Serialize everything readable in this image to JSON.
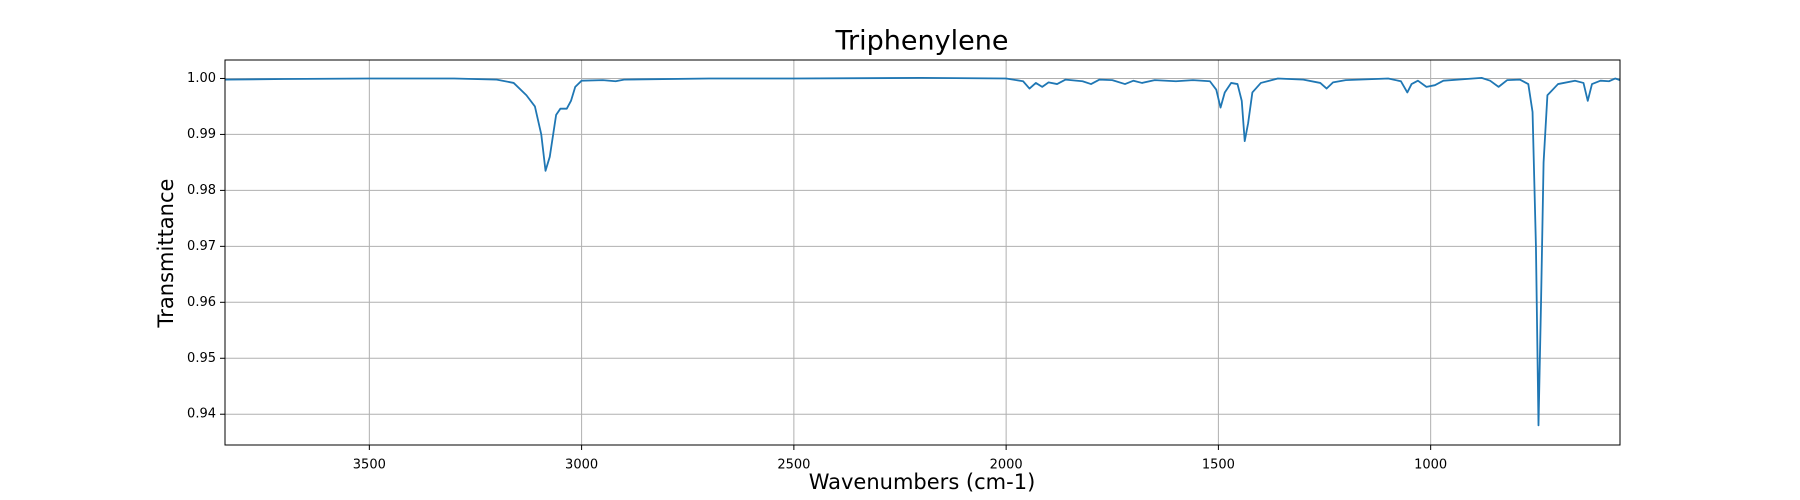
{
  "chart_data": {
    "type": "line",
    "title": "Triphenylene",
    "x_label": "Wavenumbers (cm-1)",
    "y_label": "Transmittance",
    "grid": true,
    "xlim": [
      3840,
      554
    ],
    "ylim": [
      0.9345,
      1.0033
    ],
    "xticks": [
      3500,
      3000,
      2500,
      2000,
      1500,
      1000
    ],
    "yticks": [
      0.94,
      0.95,
      0.96,
      0.97,
      0.98,
      0.99,
      {
        "value": 1,
        "label": "1.00"
      }
    ],
    "x": [
      3840,
      3700,
      3500,
      3300,
      3200,
      3160,
      3130,
      3110,
      3095,
      3085,
      3075,
      3060,
      3050,
      3035,
      3025,
      3015,
      3000,
      2950,
      2920,
      2900,
      2700,
      2500,
      2200,
      2000,
      1960,
      1945,
      1930,
      1915,
      1900,
      1880,
      1860,
      1820,
      1800,
      1780,
      1750,
      1720,
      1700,
      1680,
      1650,
      1600,
      1560,
      1520,
      1505,
      1495,
      1485,
      1470,
      1455,
      1445,
      1438,
      1430,
      1420,
      1400,
      1360,
      1300,
      1260,
      1245,
      1230,
      1200,
      1100,
      1070,
      1055,
      1045,
      1030,
      1010,
      990,
      970,
      900,
      880,
      860,
      840,
      820,
      790,
      770,
      760,
      752,
      746,
      740,
      734,
      725,
      700,
      660,
      640,
      630,
      620,
      600,
      580,
      565,
      554
    ],
    "series": [
      {
        "color": "#1f77b4",
        "values": [
          0.9998,
          0.9999,
          1.0,
          1.0,
          0.9998,
          0.9992,
          0.997,
          0.995,
          0.99,
          0.9835,
          0.986,
          0.9935,
          0.9946,
          0.9946,
          0.996,
          0.9985,
          0.9996,
          0.9997,
          0.9995,
          0.9998,
          1.0,
          1.0,
          1.0001,
          1.0,
          0.9995,
          0.9982,
          0.9992,
          0.9985,
          0.9993,
          0.999,
          0.9998,
          0.9995,
          0.999,
          0.9998,
          0.9997,
          0.999,
          0.9996,
          0.9992,
          0.9997,
          0.9995,
          0.9997,
          0.9995,
          0.998,
          0.9948,
          0.9975,
          0.9992,
          0.999,
          0.996,
          0.9888,
          0.992,
          0.9975,
          0.9992,
          1.0,
          0.9998,
          0.9992,
          0.9982,
          0.9993,
          0.9997,
          1.0,
          0.9995,
          0.9975,
          0.999,
          0.9996,
          0.9985,
          0.9988,
          0.9996,
          1.0,
          1.0001,
          0.9996,
          0.9985,
          0.9997,
          0.9998,
          0.999,
          0.994,
          0.97,
          0.938,
          0.96,
          0.985,
          0.997,
          0.999,
          0.9996,
          0.9992,
          0.996,
          0.999,
          0.9996,
          0.9995,
          1.0,
          0.9997
        ]
      }
    ]
  }
}
